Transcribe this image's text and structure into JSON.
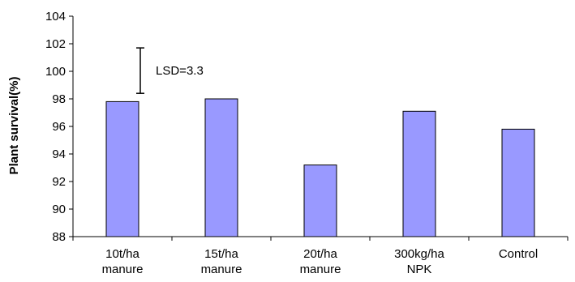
{
  "chart_data": {
    "type": "bar",
    "categories": [
      [
        "10t/ha",
        "manure"
      ],
      [
        "15t/ha",
        "manure"
      ],
      [
        "20t/ha",
        "manure"
      ],
      [
        "300kg/ha",
        "NPK"
      ],
      [
        "Control"
      ]
    ],
    "values": [
      97.8,
      98.0,
      93.2,
      97.1,
      95.8
    ],
    "ylabel": "Plant survival(%)",
    "xlabel": "",
    "ylim": [
      88,
      104
    ],
    "yticks": [
      88,
      90,
      92,
      94,
      96,
      98,
      100,
      102,
      104
    ],
    "grid": false,
    "bar_color": "#9999ff",
    "bar_edge_color": "#000000",
    "annotation": {
      "text": "LSD=3.3",
      "lsd": 3.3,
      "error_bar_range": [
        98.4,
        101.7
      ]
    }
  }
}
